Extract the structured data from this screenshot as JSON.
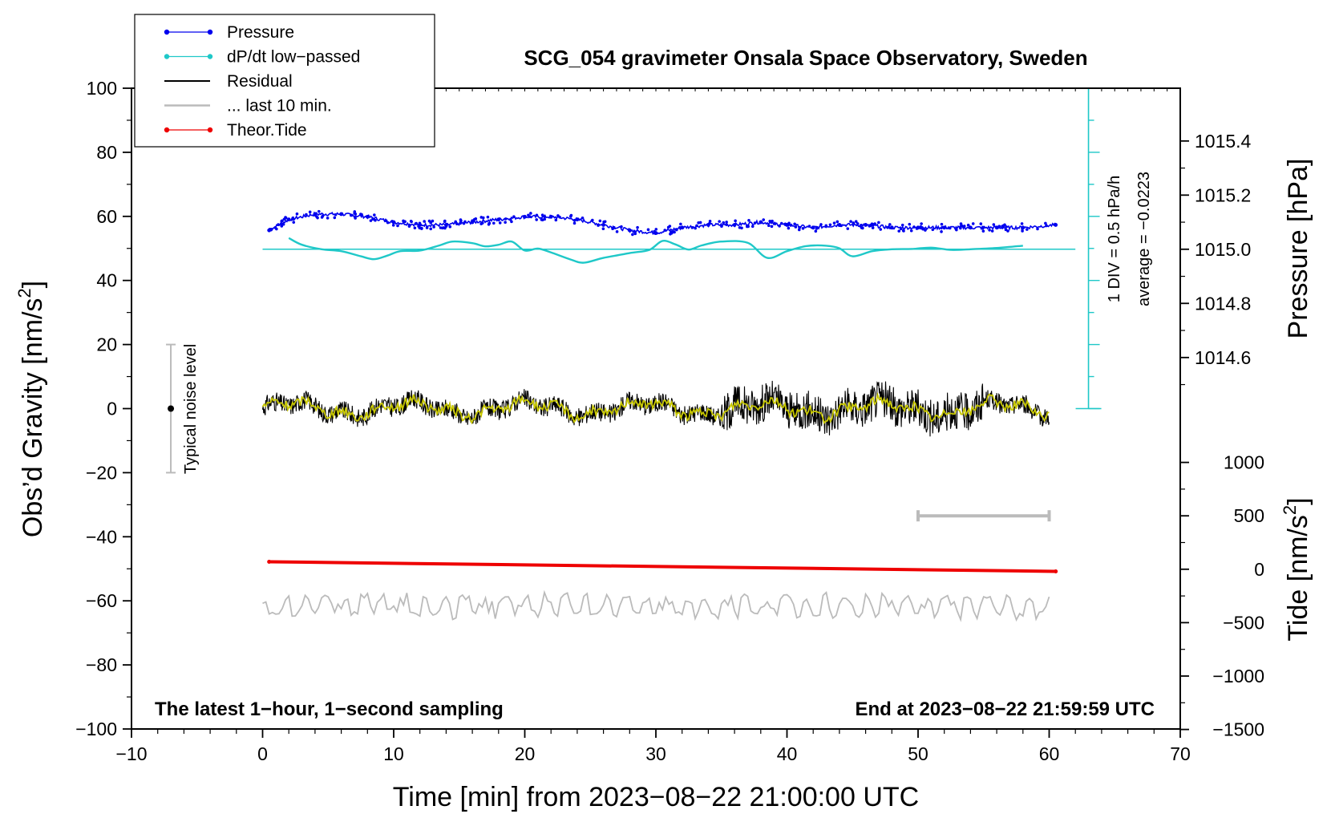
{
  "chart_data": {
    "type": "line",
    "title": "SCG_054 gravimeter Onsala Space Observatory, Sweden",
    "xlabel": "Time [min] from 2023−08−22 21:00:00 UTC",
    "ylabel_main": "Obs’d Gravity [nm/s",
    "ylabel_sup": "2",
    "ylabel_close": "]",
    "ylabel_pressure": "Pressure [hPa]",
    "ylabel_tide_main": "Tide [nm/s",
    "ylabel_tide_sup": "2",
    "ylabel_tide_close": "]",
    "xlim": [
      -10,
      70
    ],
    "ylim": [
      -100,
      100
    ],
    "x_ticks": [
      "−10",
      "0",
      "10",
      "20",
      "30",
      "40",
      "50",
      "60",
      "70"
    ],
    "y_ticks": [
      "−100",
      "−80",
      "−60",
      "−40",
      "−20",
      "0",
      "20",
      "40",
      "60",
      "80",
      "100"
    ],
    "pressure_ticks": [
      "1014.6",
      "1014.8",
      "1015.0",
      "1015.2",
      "1015.4"
    ],
    "tide_ticks": [
      "−1500",
      "−1000",
      "−500",
      "0",
      "500",
      "1000"
    ],
    "legend": [
      {
        "label": "Pressure",
        "color": "#0000ee",
        "marker": true
      },
      {
        "label": "dP/dt low−passed",
        "color": "#1fc8c8",
        "marker": true
      },
      {
        "label": "Residual",
        "color": "#000000",
        "marker": false
      },
      {
        "label": "... last 10 min.",
        "color": "#bbbbbb",
        "marker": false
      },
      {
        "label": "Theor.Tide",
        "color": "#ee0000",
        "marker": true
      }
    ],
    "annotations": {
      "scale_label": "1 DIV = 0.5 hPa/h",
      "average_label": "average = −0.0223",
      "noise_label": "Typical noise level",
      "footer_left": "The latest 1−hour, 1−second sampling",
      "footer_right": "End at 2023−08−22 21:59:59 UTC"
    },
    "series": [
      {
        "name": "Pressure",
        "color": "#0000ee",
        "x": [
          0.5,
          2,
          4,
          6,
          8,
          10,
          12,
          14,
          16,
          18,
          20,
          22,
          24,
          26,
          28,
          30,
          32,
          34,
          36,
          38,
          40,
          42,
          44,
          46,
          48,
          50,
          52,
          54,
          56,
          58,
          60.5
        ],
        "values": [
          1015.07,
          1015.11,
          1015.13,
          1015.13,
          1015.12,
          1015.1,
          1015.09,
          1015.09,
          1015.1,
          1015.11,
          1015.12,
          1015.12,
          1015.11,
          1015.09,
          1015.07,
          1015.06,
          1015.08,
          1015.09,
          1015.09,
          1015.1,
          1015.09,
          1015.08,
          1015.09,
          1015.09,
          1015.08,
          1015.08,
          1015.08,
          1015.08,
          1015.08,
          1015.08,
          1015.09
        ]
      },
      {
        "name": "dP/dt low−passed",
        "color": "#1fc8c8",
        "x": [
          2,
          3,
          4.5,
          6,
          7.5,
          8.5,
          9.5,
          10.5,
          12,
          13.5,
          14.5,
          16,
          17,
          18,
          19,
          20,
          21,
          22,
          23.5,
          24.5,
          26,
          28,
          29.5,
          30.5,
          31.5,
          32.5,
          33.5,
          35,
          37,
          38.5,
          40,
          41.5,
          43,
          44,
          45,
          46.5,
          48,
          49.5,
          51,
          52.5,
          54,
          56,
          58
        ],
        "values": [
          0.35,
          0.14,
          0.0,
          -0.06,
          -0.22,
          -0.31,
          -0.2,
          -0.06,
          -0.04,
          0.12,
          0.24,
          0.19,
          0.09,
          0.14,
          0.24,
          -0.04,
          0.02,
          -0.1,
          -0.32,
          -0.42,
          -0.27,
          -0.12,
          -0.02,
          0.26,
          0.15,
          -0.01,
          0.12,
          0.24,
          0.2,
          -0.27,
          -0.06,
          0.1,
          0.11,
          0.03,
          -0.22,
          -0.06,
          0.0,
          0.01,
          0.05,
          -0.02,
          0.0,
          0.04,
          0.11
        ]
      },
      {
        "name": "Theor.Tide",
        "color": "#ee0000",
        "x": [
          0.5,
          60.5
        ],
        "values": [
          70,
          -20
        ]
      }
    ]
  }
}
